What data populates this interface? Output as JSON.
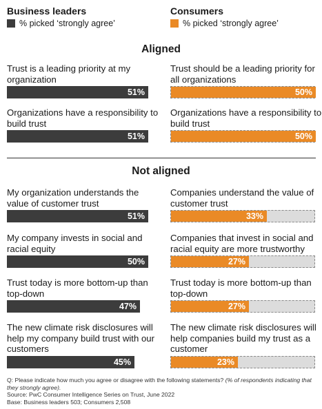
{
  "legend": {
    "left": {
      "title": "Business leaders",
      "label": "% picked ‘strongly agree’",
      "color": "#3c3c3c"
    },
    "right": {
      "title": "Consumers",
      "label": "% picked ‘strongly agree’",
      "color": "#ea8a26"
    }
  },
  "sections": {
    "aligned": "Aligned",
    "not_aligned": "Not aligned"
  },
  "chart_data": {
    "type": "bar",
    "value_max": 100,
    "rows": [
      {
        "section": "Aligned",
        "business": {
          "label": "Trust is a leading priority at my organization",
          "value": 51,
          "display": "51%"
        },
        "consumer": {
          "label": "Trust should be a leading priority for all organizations",
          "value": 50,
          "display": "50%"
        }
      },
      {
        "section": "Aligned",
        "business": {
          "label": "Organizations have a responsibility to build trust",
          "value": 51,
          "display": "51%"
        },
        "consumer": {
          "label": "Organizations have a responsibility to build trust",
          "value": 50,
          "display": "50%"
        }
      },
      {
        "section": "Not aligned",
        "business": {
          "label": "My organization understands the value of customer trust",
          "value": 51,
          "display": "51%"
        },
        "consumer": {
          "label": "Companies understand the value of customer trust",
          "value": 33,
          "display": "33%"
        }
      },
      {
        "section": "Not aligned",
        "business": {
          "label": "My company invests in social and racial equity",
          "value": 50,
          "display": "50%"
        },
        "consumer": {
          "label": "Companies that invest in social and racial equity are more trustworthy",
          "value": 27,
          "display": "27%"
        }
      },
      {
        "section": "Not aligned",
        "business": {
          "label": "Trust today is more bottom-up than top-down",
          "value": 47,
          "display": "47%"
        },
        "consumer": {
          "label": "Trust today is more bottom-up than top-down",
          "value": 27,
          "display": "27%"
        }
      },
      {
        "section": "Not aligned",
        "business": {
          "label": "The new climate risk disclosures will help my company build trust with our customers",
          "value": 45,
          "display": "45%"
        },
        "consumer": {
          "label": "The new climate risk disclosures will help companies build my trust as a customer",
          "value": 23,
          "display": "23%"
        }
      }
    ]
  },
  "footnote": {
    "question": "Q: Please indicate how much you agree or disagree with the following statements?",
    "question_note": "(% of respondents indicating that they strongly agree).",
    "source": "Source: PwC Consumer Intelligence Series on Trust, June 2022",
    "base": "Base: Business leaders 503; Consumers 2,508"
  }
}
